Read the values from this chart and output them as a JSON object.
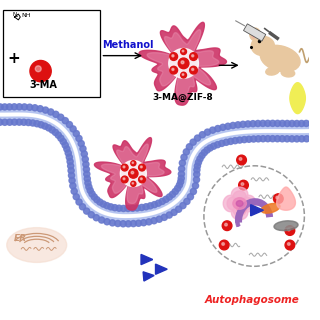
{
  "bg_color": "#ffffff",
  "membrane_color": "#aabbee",
  "membrane_outline": "#6677cc",
  "red_color": "#dd1111",
  "zif8_outer": "#cc3366",
  "zif8_inner": "#dd88aa",
  "blue_tri": "#2233bb",
  "text_methanol": "Methanol",
  "text_3MA": "3-MA",
  "text_3MAZIF8": "3-MA@ZIF-8",
  "text_autophagosome": "Autophagosome",
  "auto_text_color": "#ee2222",
  "mouse_color": "#e8c8a0",
  "yellow_color": "#f0ee55",
  "er_color": "#f5ddd0",
  "er_line": "#cc9977",
  "gray_wavy": "#aaaaaa",
  "arrow_color": "#111111",
  "box_color": "#111111"
}
